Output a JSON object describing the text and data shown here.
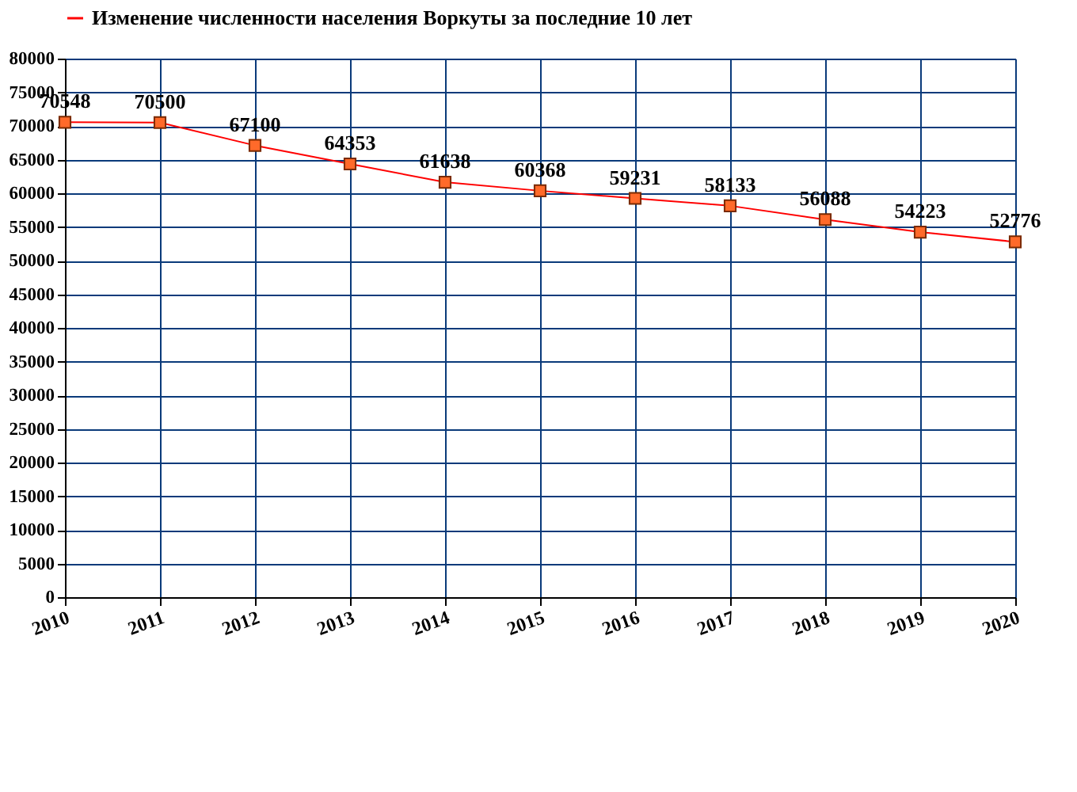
{
  "chart_data": {
    "type": "line",
    "x": [
      2010,
      2011,
      2012,
      2013,
      2014,
      2015,
      2016,
      2017,
      2018,
      2019,
      2020
    ],
    "series": [
      {
        "name": "Изменение численности населения Воркуты за последние 10 лет",
        "color": "#ff0000",
        "values": [
          70548,
          70500,
          67100,
          64353,
          61638,
          60368,
          59231,
          58133,
          56088,
          54223,
          52776
        ]
      }
    ],
    "xlim": [
      2010,
      2020
    ],
    "xticks": [
      2010,
      2011,
      2012,
      2013,
      2014,
      2015,
      2016,
      2017,
      2018,
      2019,
      2020
    ],
    "ylim": [
      0,
      80000
    ],
    "yticks": [
      0,
      5000,
      10000,
      15000,
      20000,
      25000,
      30000,
      35000,
      40000,
      45000,
      50000,
      55000,
      60000,
      65000,
      70000,
      75000,
      80000
    ],
    "grid": true,
    "legend": "top",
    "marker": "square",
    "line_style": "solid",
    "data_labels": true
  }
}
